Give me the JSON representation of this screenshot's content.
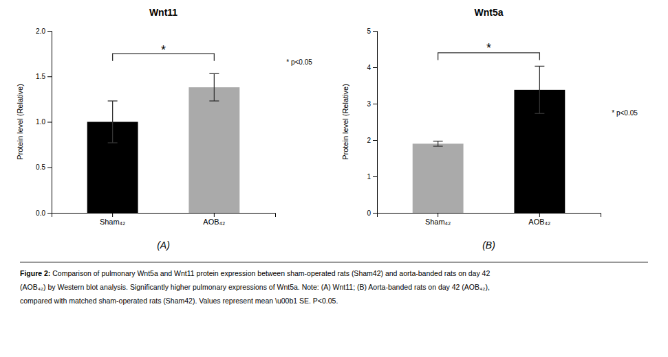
{
  "chart_data": [
    {
      "type": "bar",
      "title": "Wnt11",
      "categories": [
        "Sham₄₂",
        "AOB₄₂"
      ],
      "values": [
        1.0,
        1.38
      ],
      "errors": [
        0.23,
        0.15
      ],
      "colors": [
        "#000000",
        "#aaaaaa"
      ],
      "ylabel": "Protein level (Relative)",
      "ylim": [
        0,
        2.0
      ],
      "yticks": [
        {
          "value": 0.0,
          "label": "0.0"
        },
        {
          "value": 0.5,
          "label": "0.5"
        },
        {
          "value": 1.0,
          "label": "1.0"
        },
        {
          "value": 1.5,
          "label": "1.5"
        },
        {
          "value": 2.0,
          "label": "2.0"
        }
      ],
      "significance": {
        "text": "*",
        "bracket_y": 1.75,
        "star_y": 1.82
      },
      "pvalue_text": "* p<0.05",
      "panel_label": "(A)"
    },
    {
      "type": "bar",
      "title": "Wnt5a",
      "categories": [
        "Sham₄₂",
        "AOB₄₂"
      ],
      "values": [
        1.9,
        3.38
      ],
      "errors": [
        0.07,
        0.65
      ],
      "colors": [
        "#aaaaaa",
        "#000000"
      ],
      "ylabel": "Protein level (Relative)",
      "ylim": [
        0,
        5.0
      ],
      "yticks": [
        0,
        1,
        2,
        3,
        4,
        5
      ],
      "significance": {
        "text": "*",
        "bracket_y": 4.4,
        "star_y": 4.6
      },
      "pvalue_text": "* p<0.05",
      "panel_label": "(B)"
    }
  ],
  "caption": {
    "label": "Figure 2:",
    "lines": [
      " Comparison of pulmonary Wnt5a and Wnt11 protein expression between sham-operated rats (Sham42) and aorta-banded rats on day 42",
      "(AOB₄₂) by Western blot analysis. Significantly higher pulmonary expressions of Wnt5a. Note: (A) Wnt11; (B) Aorta-banded rats on day 42 (AOB₄₂),",
      "compared with matched sham-operated rats (Sham42). Values represent mean \\u00b1 SE. P<0.05."
    ]
  }
}
